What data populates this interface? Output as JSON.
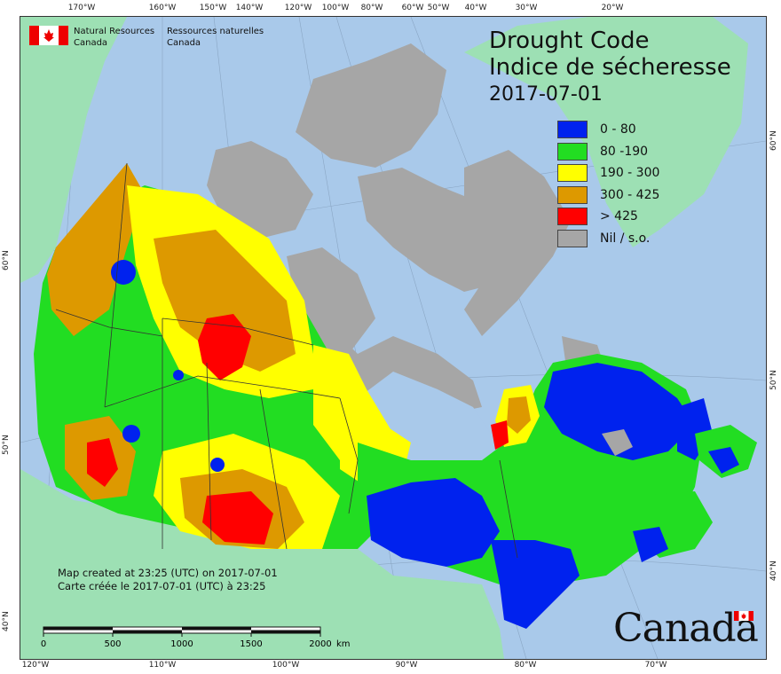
{
  "title": {
    "en": "Drought Code",
    "fr": "Indice de sécheresse",
    "date": "2017-07-01"
  },
  "legend": [
    {
      "label": "0 - 80",
      "color": "#0022ee"
    },
    {
      "label": "80 -190",
      "color": "#22dd22"
    },
    {
      "label": "190 - 300",
      "color": "#ffff00"
    },
    {
      "label": "300 - 425",
      "color": "#dd9900"
    },
    {
      "label": "> 425",
      "color": "#ff0000"
    },
    {
      "label": "Nil / s.o.",
      "color": "#a6a6a6"
    }
  ],
  "agency": {
    "name_en_1": "Natural Resources",
    "name_en_2": "Canada",
    "name_fr_1": "Ressources naturelles",
    "name_fr_2": "Canada"
  },
  "credits": {
    "line_en": "Map created at 23:25 (UTC) on 2017-07-01",
    "line_fr": "Carte créée le 2017-07-01 (UTC) à 23:25"
  },
  "scale": {
    "labels": [
      "0",
      "500",
      "1000",
      "1500",
      "2000"
    ],
    "unit": "km"
  },
  "wordmark": "Canada",
  "graticule": {
    "top_lon": [
      "170°W",
      "160°W",
      "150°W",
      "140°W",
      "120°W",
      "100°W",
      "80°W",
      "60°W",
      "50°W",
      "40°W",
      "30°W",
      "20°W"
    ],
    "bottom_lon": [
      "120°W",
      "110°W",
      "100°W",
      "90°W",
      "80°W",
      "70°W"
    ],
    "left_lat": [
      "60°N",
      "50°N",
      "40°N"
    ],
    "right_lat": [
      "60°N",
      "50°N",
      "40°N"
    ]
  },
  "colors": {
    "ocean": "#a9c9ea",
    "foreign_land": "#9de0b4",
    "no_data": "#a6a6a6",
    "very_low": "#0022ee",
    "low": "#22dd22",
    "moderate": "#ffff00",
    "high": "#dd9900",
    "extreme": "#ff0000"
  }
}
